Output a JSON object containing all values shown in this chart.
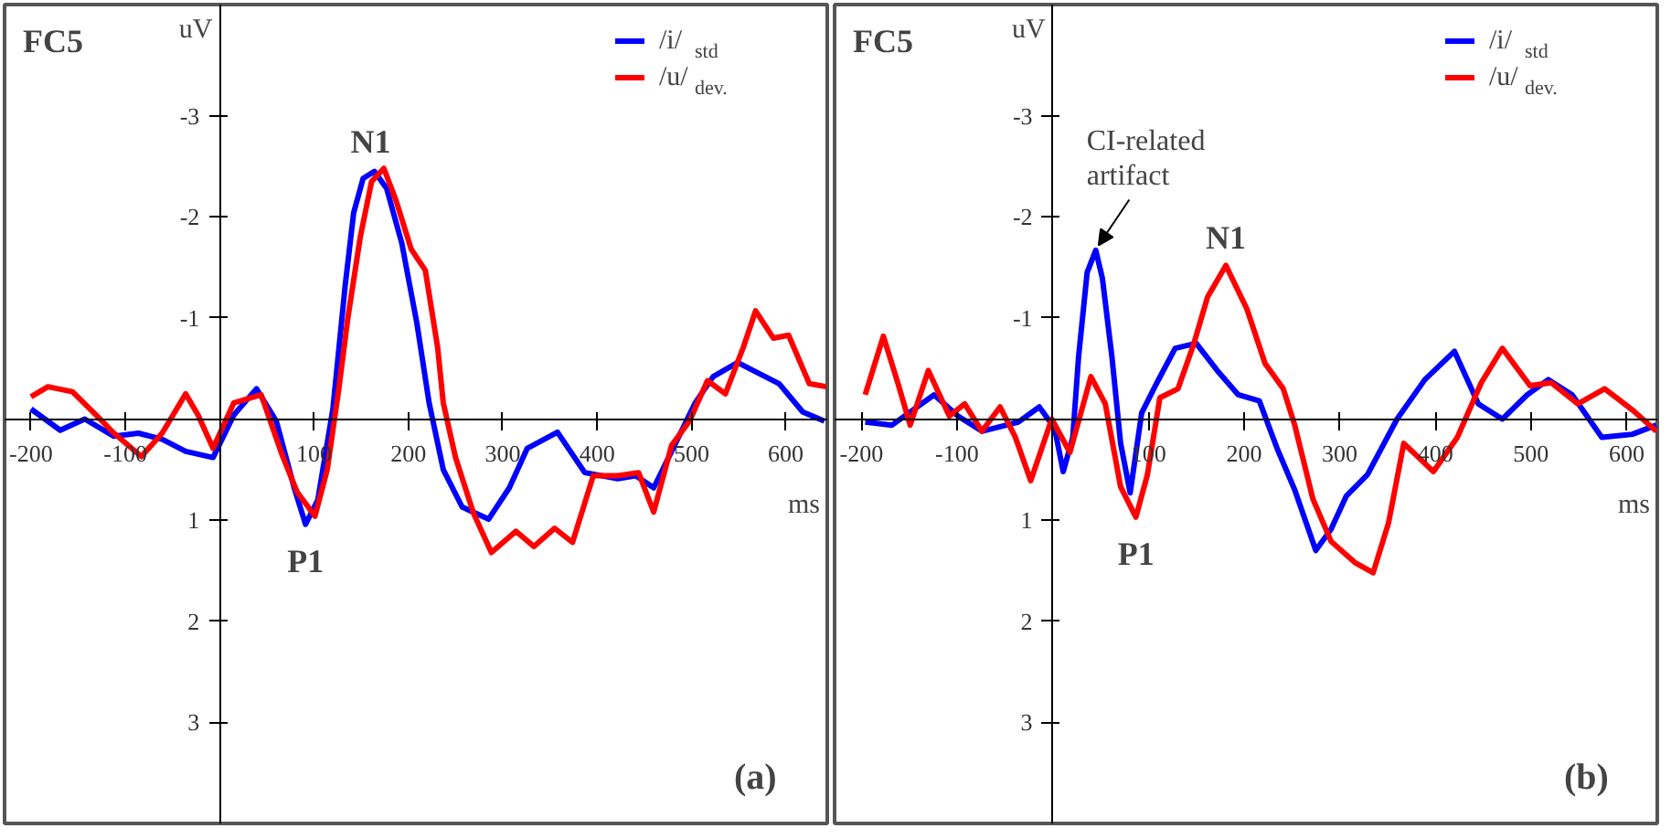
{
  "chart_data": [
    {
      "type": "line",
      "title": "FC5",
      "xlabel": "ms",
      "ylabel": "uV",
      "xlim": [
        -228,
        644
      ],
      "ylim": [
        4.0,
        -4.1
      ],
      "xticks": [
        -200,
        -100,
        100,
        200,
        300,
        400,
        500,
        600
      ],
      "yticks": [
        -3,
        -2,
        -1,
        1,
        2,
        3
      ],
      "legend": "top right",
      "series": [
        {
          "name": "/i/$_{std}$",
          "color": "#0000ff",
          "x": [
            -200,
            -169,
            -143,
            -112,
            -86,
            -61,
            -36,
            -7,
            15,
            39,
            60,
            79,
            91,
            104,
            120,
            133,
            142,
            152,
            164,
            177,
            193,
            209,
            222,
            237,
            257,
            285,
            307,
            326,
            358,
            387,
            422,
            441,
            460,
            479,
            504,
            523,
            549,
            574,
            593,
            618,
            641
          ],
          "values": [
            -0.1,
            0.11,
            0,
            0.17,
            0.14,
            0.2,
            0.32,
            0.38,
            -0.04,
            -0.3,
            0.02,
            0.68,
            1.04,
            0.8,
            -0.1,
            -1.32,
            -2.04,
            -2.38,
            -2.45,
            -2.28,
            -1.74,
            -0.95,
            -0.16,
            0.5,
            0.87,
            0.99,
            0.68,
            0.29,
            0.13,
            0.53,
            0.59,
            0.56,
            0.68,
            0.32,
            -0.16,
            -0.42,
            -0.56,
            -0.44,
            -0.35,
            -0.07,
            0.02
          ]
        },
        {
          "name": "/u/$_{dev.}$",
          "color": "#ff0000",
          "x": [
            -200,
            -182,
            -156,
            -131,
            -112,
            -83,
            -61,
            -36,
            -23,
            -7,
            15,
            44,
            66,
            82,
            101,
            114,
            126,
            136,
            149,
            161,
            174,
            187,
            203,
            218,
            231,
            237,
            250,
            269,
            288,
            314,
            333,
            355,
            374,
            396,
            422,
            444,
            460,
            479,
            498,
            517,
            536,
            555,
            568,
            587,
            603,
            625,
            643
          ],
          "values": [
            -0.22,
            -0.32,
            -0.27,
            -0.04,
            0.14,
            0.37,
            0.14,
            -0.25,
            -0.04,
            0.29,
            -0.16,
            -0.24,
            0.35,
            0.72,
            0.96,
            0.5,
            -0.28,
            -1.01,
            -1.8,
            -2.35,
            -2.48,
            -2.16,
            -1.68,
            -1.47,
            -0.71,
            -0.16,
            0.38,
            0.93,
            1.32,
            1.11,
            1.26,
            1.08,
            1.22,
            0.56,
            0.56,
            0.53,
            0.92,
            0.26,
            0.02,
            -0.38,
            -0.25,
            -0.71,
            -1.07,
            -0.8,
            -0.83,
            -0.35,
            -0.32
          ]
        }
      ],
      "annotations": [
        {
          "text": "N1",
          "x": 160,
          "y": -2.47
        },
        {
          "text": "P1",
          "x": 91,
          "y": 1.04
        },
        "(a)"
      ]
    },
    {
      "type": "line",
      "title": "FC5",
      "xlabel": "ms",
      "ylabel": "uV",
      "xlim": [
        -228,
        632
      ],
      "ylim": [
        4.0,
        -4.1
      ],
      "xticks": [
        -200,
        -100,
        100,
        200,
        300,
        400,
        500,
        600
      ],
      "yticks": [
        -3,
        -2,
        -1,
        1,
        2,
        3
      ],
      "legend": "top right",
      "series": [
        {
          "name": "/i/$_{std}$",
          "color": "#0000ff",
          "x": [
            -196,
            -168,
            -124,
            -99,
            -74,
            -36,
            -14,
            2,
            11,
            21,
            27,
            36,
            45,
            52,
            62,
            71,
            81,
            93,
            109,
            128,
            150,
            172,
            194,
            216,
            235,
            253,
            275,
            291,
            307,
            329,
            360,
            389,
            420,
            445,
            470,
            496,
            518,
            543,
            574,
            606,
            631
          ],
          "values": [
            0.03,
            0.06,
            -0.24,
            -0.03,
            0.12,
            0.03,
            -0.12,
            0.09,
            0.52,
            0.18,
            -0.61,
            -1.45,
            -1.67,
            -1.39,
            -0.61,
            0.24,
            0.73,
            -0.06,
            -0.36,
            -0.7,
            -0.75,
            -0.48,
            -0.24,
            -0.18,
            0.3,
            0.7,
            1.3,
            1.09,
            0.76,
            0.55,
            0,
            -0.39,
            -0.67,
            -0.15,
            0,
            -0.24,
            -0.39,
            -0.24,
            0.18,
            0.15,
            0.06
          ]
        },
        {
          "name": "/u/$_{dev.}$",
          "color": "#ff0000",
          "x": [
            -196,
            -177,
            -162,
            -149,
            -130,
            -108,
            -92,
            -74,
            -55,
            -39,
            -23,
            -1,
            18,
            40,
            55,
            71,
            87,
            99,
            112,
            131,
            147,
            162,
            181,
            203,
            222,
            241,
            253,
            272,
            291,
            316,
            335,
            351,
            367,
            398,
            423,
            448,
            470,
            499,
            521,
            549,
            577,
            606,
            631
          ],
          "values": [
            -0.24,
            -0.82,
            -0.36,
            0.06,
            -0.48,
            -0.03,
            -0.15,
            0.12,
            -0.12,
            0.18,
            0.61,
            0,
            0.33,
            -0.42,
            -0.15,
            0.67,
            0.97,
            0.55,
            -0.21,
            -0.3,
            -0.73,
            -1.21,
            -1.52,
            -1.09,
            -0.55,
            -0.3,
            0.06,
            0.79,
            1.21,
            1.42,
            1.52,
            1.03,
            0.24,
            0.52,
            0.18,
            -0.36,
            -0.7,
            -0.33,
            -0.36,
            -0.15,
            -0.3,
            -0.09,
            0.12
          ]
        }
      ],
      "annotations": [
        {
          "text": "CI-related artifact",
          "x": 45,
          "y": -1.67
        },
        {
          "text": "N1",
          "x": 181,
          "y": -1.52
        },
        {
          "text": "P1",
          "x": 87,
          "y": 0.97
        },
        "(b)"
      ]
    }
  ]
}
